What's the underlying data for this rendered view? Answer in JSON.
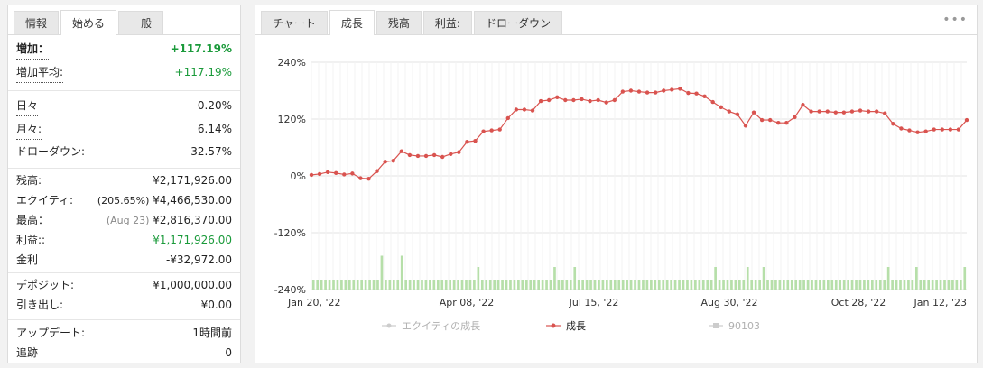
{
  "left_tabs": [
    "情報",
    "始める",
    "一般"
  ],
  "stats": {
    "gain_label": "増加：",
    "gain_value": "+117.19%",
    "abs_gain_label": "増加平均:",
    "abs_gain_value": "+117.19%",
    "daily_label": "日々",
    "daily_value": "0.20%",
    "monthly_label": "月々:",
    "monthly_value": "6.14%",
    "drawdown_label": "ドローダウン:",
    "drawdown_value": "32.57%",
    "balance_label": "残高:",
    "balance_value": "¥2,171,926.00",
    "equity_label": "エクイティ:",
    "equity_pct": "(205.65%)",
    "equity_value": "¥4,466,530.00",
    "highest_label": "最高：",
    "highest_date": "(Aug 23)",
    "highest_value": "¥2,816,370.00",
    "profit_label": "利益::",
    "profit_value": "¥1,171,926.00",
    "interest_label": "金利",
    "interest_value": "-¥32,972.00",
    "deposits_label": "デポジット:",
    "deposits_value": "¥1,000,000.00",
    "withdrawals_label": "引き出し:",
    "withdrawals_value": "¥0.00",
    "updated_label": "アップデート:",
    "updated_value": "1時間前",
    "tracking_label": "追跡",
    "tracking_value": "0"
  },
  "right_tabs": [
    "チャート",
    "成長",
    "残高",
    "利益:",
    "ドローダウン"
  ],
  "more_icon": "ellipsis-icon",
  "chart_data": {
    "type": "line",
    "y_ticks": [
      "240%",
      "120%",
      "0%",
      "-120%",
      "-240%"
    ],
    "ylim": [
      -240,
      240
    ],
    "x_ticks": [
      "Jan 20, '22",
      "Apr 08, '22",
      "Jul 15, '22",
      "Aug 30, '22",
      "Oct 28, '22",
      "Jan 12, '23"
    ],
    "legend": [
      "エクイティの成長",
      "成長",
      "90103"
    ],
    "colors": {
      "growth": "#d9534f",
      "bars": "#b6dfa9",
      "equity_legend": "#cccccc"
    },
    "growth_series": [
      2,
      4,
      8,
      6,
      3,
      5,
      -5,
      -6,
      10,
      30,
      32,
      52,
      44,
      42,
      42,
      44,
      40,
      46,
      50,
      72,
      74,
      94,
      96,
      98,
      122,
      140,
      140,
      138,
      158,
      160,
      166,
      160,
      160,
      162,
      158,
      160,
      155,
      160,
      178,
      180,
      178,
      176,
      176,
      180,
      182,
      184,
      175,
      174,
      168,
      156,
      145,
      136,
      130,
      106,
      134,
      118,
      118,
      112,
      112,
      124,
      150,
      136,
      136,
      136,
      134,
      134,
      136,
      138,
      136,
      136,
      132,
      110,
      100,
      96,
      92,
      94,
      98,
      98,
      98,
      98,
      118
    ],
    "bar_series": [
      22,
      22,
      22,
      22,
      22,
      22,
      22,
      22,
      22,
      22,
      22,
      22,
      22,
      22,
      22,
      22,
      22,
      75,
      22,
      22,
      22,
      22,
      75,
      22,
      22,
      22,
      22,
      22,
      22,
      22,
      22,
      22,
      22,
      22,
      22,
      22,
      22,
      22,
      22,
      22,
      22,
      50,
      22,
      22,
      22,
      22,
      22,
      22,
      22,
      22,
      22,
      22,
      22,
      22,
      22,
      22,
      22,
      22,
      22,
      22,
      50,
      22,
      22,
      22,
      22,
      50,
      22,
      22,
      22,
      22,
      22,
      22,
      22,
      22,
      22,
      22,
      22,
      22,
      22,
      22,
      22,
      22,
      22,
      22,
      22,
      22,
      22,
      22,
      22,
      22,
      22,
      22,
      22,
      22,
      22,
      22,
      22,
      22,
      22,
      22,
      50,
      22,
      22,
      22,
      22,
      22,
      22,
      22,
      50,
      22,
      22,
      22,
      50,
      22,
      22,
      22,
      22,
      22,
      22,
      22,
      22,
      22,
      22,
      22,
      22,
      22,
      22,
      22,
      22,
      22,
      22,
      22,
      22,
      22,
      22,
      22,
      22,
      22,
      22,
      22,
      22,
      22,
      22,
      50,
      22,
      22,
      22,
      22,
      22,
      22,
      50,
      22,
      22,
      22,
      22,
      22,
      22,
      22,
      22,
      22,
      22,
      22,
      50
    ]
  }
}
